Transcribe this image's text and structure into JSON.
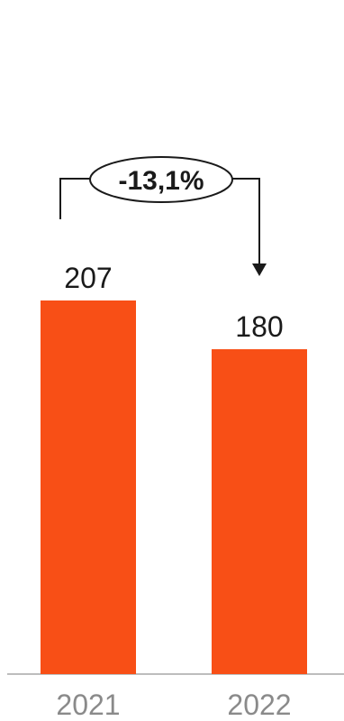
{
  "chart_data": {
    "type": "bar",
    "categories": [
      "2021",
      "2022"
    ],
    "values": [
      207,
      180
    ],
    "value_labels": [
      "207",
      "180"
    ],
    "change_annotation": "-13,1%",
    "ylim": [
      0,
      220
    ],
    "grid": false,
    "legend": "none",
    "bar_color": "#F84F16",
    "axis_color": "#bdbdbd"
  }
}
